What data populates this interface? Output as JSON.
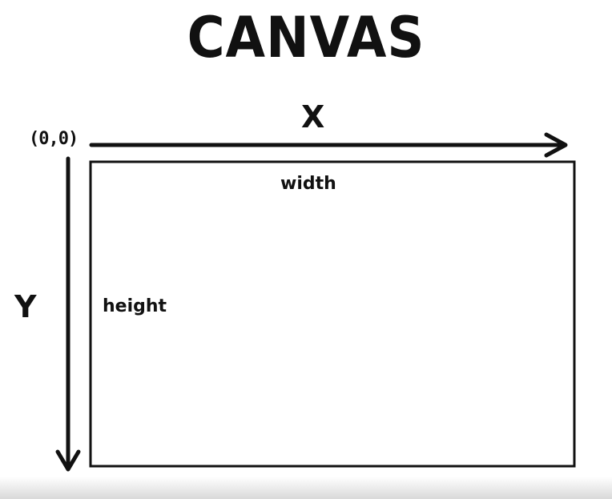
{
  "diagram": {
    "title": "CANVAS",
    "x_axis_label": "X",
    "y_axis_label": "Y",
    "origin_label": "(0,0)",
    "width_label": "width",
    "height_label": "height"
  },
  "colors": {
    "stroke": "#111111",
    "background": "#ffffff"
  }
}
